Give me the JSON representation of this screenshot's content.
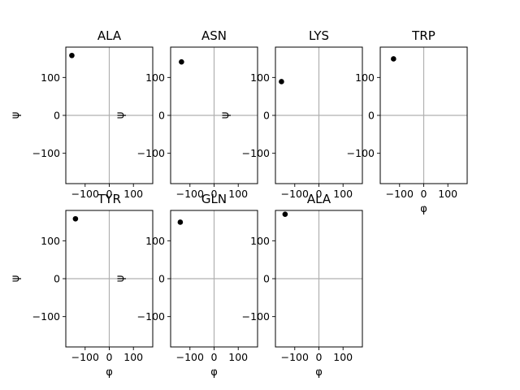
{
  "chart_data": [
    {
      "type": "scatter",
      "title": "ALA",
      "xlabel": "φ",
      "ylabel": "ψ",
      "xlim": [
        -180,
        180
      ],
      "ylim": [
        -180,
        180
      ],
      "xticks": [
        -100,
        0,
        100
      ],
      "yticks": [
        -100,
        0,
        100
      ],
      "reference_lines": {
        "x": 0,
        "y": 0
      },
      "points": [
        {
          "x": -155,
          "y": 158
        }
      ]
    },
    {
      "type": "scatter",
      "title": "ASN",
      "xlabel": "φ",
      "ylabel": "ψ",
      "xlim": [
        -180,
        180
      ],
      "ylim": [
        -180,
        180
      ],
      "xticks": [
        -100,
        0,
        100
      ],
      "yticks": [
        -100,
        0,
        100
      ],
      "reference_lines": {
        "x": 0,
        "y": 0
      },
      "points": [
        {
          "x": -135,
          "y": 141
        }
      ]
    },
    {
      "type": "scatter",
      "title": "LYS",
      "xlabel": "φ",
      "ylabel": "ψ",
      "xlim": [
        -180,
        180
      ],
      "ylim": [
        -180,
        180
      ],
      "xticks": [
        -100,
        0,
        100
      ],
      "yticks": [
        -100,
        0,
        100
      ],
      "reference_lines": {
        "x": 0,
        "y": 0
      },
      "points": [
        {
          "x": -155,
          "y": 89
        }
      ]
    },
    {
      "type": "scatter",
      "title": "TRP",
      "xlabel": "φ",
      "ylabel": "ψ",
      "xlim": [
        -180,
        180
      ],
      "ylim": [
        -180,
        180
      ],
      "xticks": [
        -100,
        0,
        100
      ],
      "yticks": [
        -100,
        0,
        100
      ],
      "reference_lines": {
        "x": 0,
        "y": 0
      },
      "points": [
        {
          "x": -125,
          "y": 149
        }
      ]
    },
    {
      "type": "scatter",
      "title": "TYR",
      "xlabel": "φ",
      "ylabel": "ψ",
      "xlim": [
        -180,
        180
      ],
      "ylim": [
        -180,
        180
      ],
      "xticks": [
        -100,
        0,
        100
      ],
      "yticks": [
        -100,
        0,
        100
      ],
      "reference_lines": {
        "x": 0,
        "y": 0
      },
      "points": [
        {
          "x": -140,
          "y": 158
        }
      ]
    },
    {
      "type": "scatter",
      "title": "GLN",
      "xlabel": "φ",
      "ylabel": "ψ",
      "xlim": [
        -180,
        180
      ],
      "ylim": [
        -180,
        180
      ],
      "xticks": [
        -100,
        0,
        100
      ],
      "yticks": [
        -100,
        0,
        100
      ],
      "reference_lines": {
        "x": 0,
        "y": 0
      },
      "points": [
        {
          "x": -140,
          "y": 149
        }
      ]
    },
    {
      "type": "scatter",
      "title": "ALA",
      "xlabel": "φ",
      "ylabel": "ψ",
      "xlim": [
        -180,
        180
      ],
      "ylim": [
        -180,
        180
      ],
      "xticks": [
        -100,
        0,
        100
      ],
      "yticks": [
        -100,
        0,
        100
      ],
      "reference_lines": {
        "x": 0,
        "y": 0
      },
      "points": [
        {
          "x": -140,
          "y": 170
        }
      ]
    }
  ],
  "layout": {
    "rows": 2,
    "cols": 4,
    "show_xlabel": [
      false,
      false,
      false,
      true,
      true,
      true,
      true
    ],
    "show_ylabel": [
      true,
      true,
      true,
      false,
      true,
      true,
      false
    ]
  }
}
